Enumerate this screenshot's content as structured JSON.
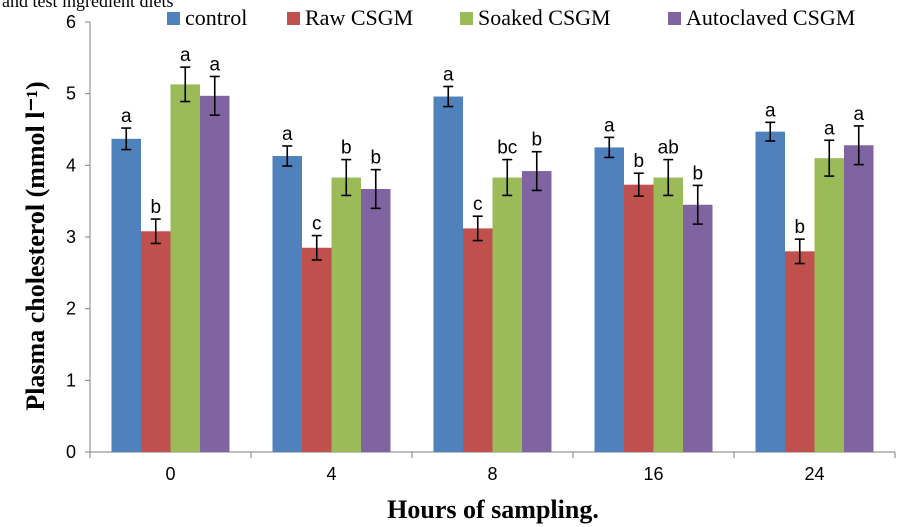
{
  "caption_fragment": "and test ingredient diets",
  "chart_data": {
    "type": "bar",
    "categories": [
      "0",
      "4",
      "8",
      "16",
      "24"
    ],
    "xlabel": "Hours of sampling.",
    "ylabel": "Plasma cholesterol (mmol l⁻¹)",
    "ylim": [
      0,
      6
    ],
    "yticks": [
      "0",
      "1",
      "2",
      "3",
      "4",
      "5",
      "6"
    ],
    "legend_position": "top",
    "series": [
      {
        "name": "control",
        "color": "#4F81BD",
        "values": [
          4.37,
          4.13,
          4.96,
          4.25,
          4.47
        ],
        "errors": [
          0.15,
          0.14,
          0.14,
          0.14,
          0.13
        ],
        "letters": [
          "a",
          "a",
          "a",
          "a",
          "a"
        ]
      },
      {
        "name": "Raw CSGM",
        "color": "#C0504D",
        "values": [
          3.08,
          2.85,
          3.12,
          3.73,
          2.8
        ],
        "errors": [
          0.17,
          0.17,
          0.17,
          0.16,
          0.17
        ],
        "letters": [
          "b",
          "c",
          "c",
          "b",
          "b"
        ]
      },
      {
        "name": "Soaked CSGM",
        "color": "#9BBB59",
        "values": [
          5.13,
          3.83,
          3.83,
          3.83,
          4.1
        ],
        "errors": [
          0.24,
          0.25,
          0.25,
          0.25,
          0.25
        ],
        "letters": [
          "a",
          "b",
          "bc",
          "ab",
          "a"
        ]
      },
      {
        "name": "Autoclaved CSGM",
        "color": "#8064A2",
        "values": [
          4.97,
          3.67,
          3.92,
          3.45,
          4.28
        ],
        "errors": [
          0.27,
          0.27,
          0.27,
          0.27,
          0.27
        ],
        "letters": [
          "a",
          "b",
          "b",
          "b",
          "a"
        ]
      }
    ]
  }
}
